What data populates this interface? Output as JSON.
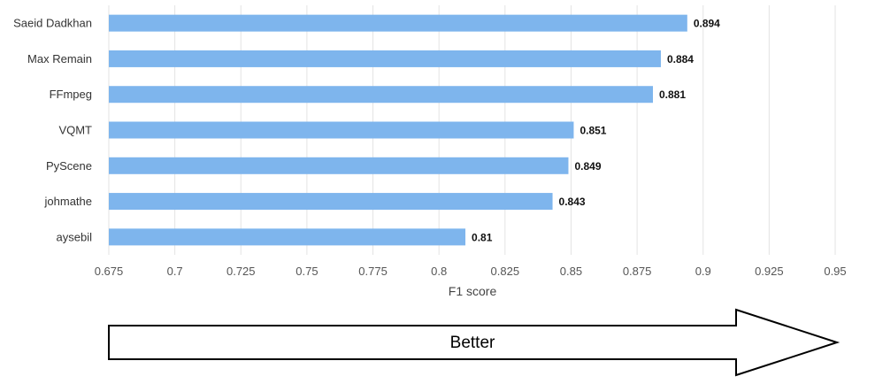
{
  "chart_data": {
    "type": "bar",
    "orientation": "horizontal",
    "categories": [
      "Saeid Dadkhan",
      "Max Remain",
      "FFmpeg",
      "VQMT",
      "PyScene",
      "johmathe",
      "aysebil"
    ],
    "values": [
      0.894,
      0.884,
      0.881,
      0.851,
      0.849,
      0.843,
      0.81
    ],
    "value_labels": [
      "0.894",
      "0.884",
      "0.881",
      "0.851",
      "0.849",
      "0.843",
      "0.81"
    ],
    "title": "",
    "xlabel": "F1 score",
    "ylabel": "",
    "xlim": [
      0.675,
      0.95
    ],
    "xticks": [
      "0.675",
      "0.7",
      "0.725",
      "0.75",
      "0.775",
      "0.8",
      "0.825",
      "0.85",
      "0.875",
      "0.9",
      "0.925",
      "0.95"
    ],
    "grid": "vertical",
    "bar_color": "#7eb5ed",
    "grid_color": "#e3e3e3"
  },
  "annotation": {
    "arrow_label": "Better"
  }
}
